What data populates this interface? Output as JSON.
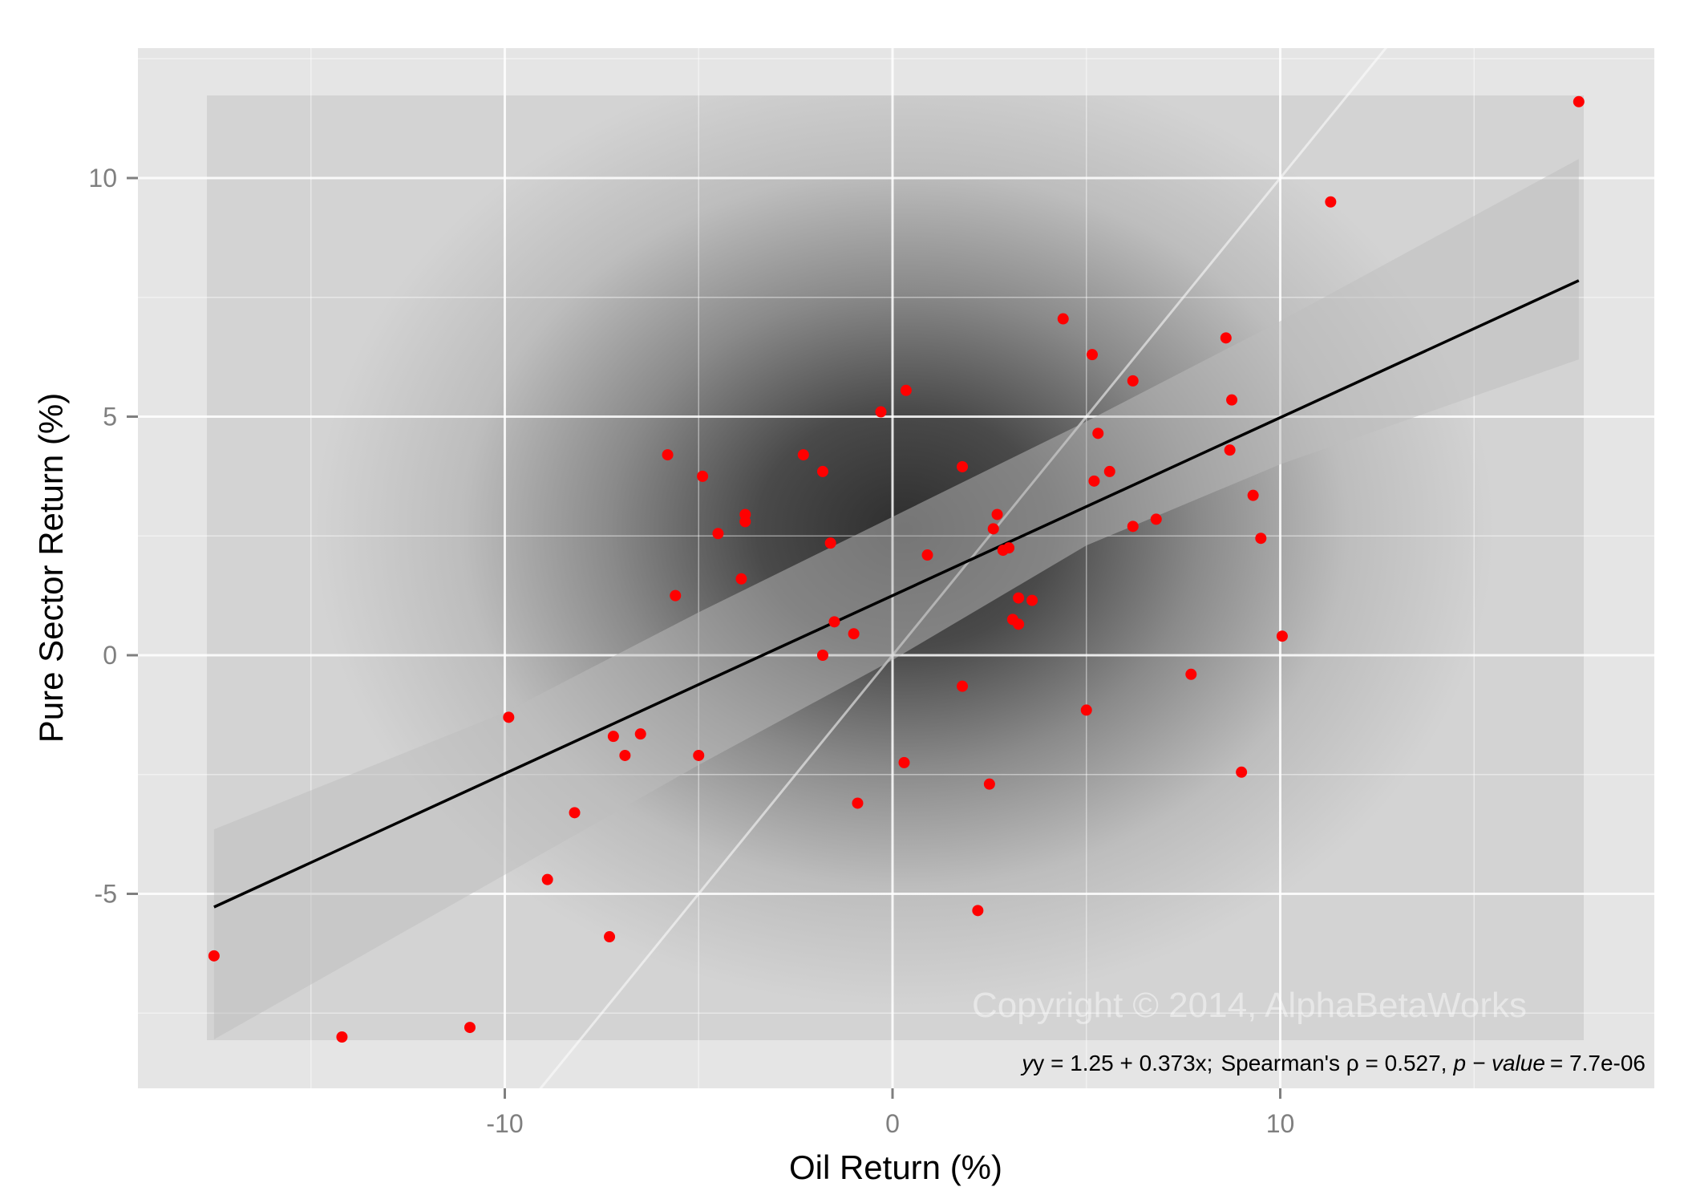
{
  "chart_data": {
    "type": "scatter",
    "title": "",
    "xlabel": "Oil Return (%)",
    "ylabel": "Pure Sector Return (%)",
    "xlim": [
      -18.2,
      19.6
    ],
    "ylim": [
      -9.1,
      12.6
    ],
    "x_ticks": [
      -10,
      0,
      10
    ],
    "y_ticks": [
      -5,
      0,
      5,
      10
    ],
    "grid": true,
    "point_color": "#ff0000",
    "regression": {
      "intercept": 1.25,
      "slope": 0.373,
      "x_range": [
        -17.5,
        17.7
      ],
      "color": "#000000"
    },
    "confidence_band": {
      "x": [
        -17.5,
        -10,
        -5,
        0,
        5,
        10,
        17.7
      ],
      "upper": [
        -3.65,
        -1.2,
        0.9,
        2.9,
        4.9,
        7.0,
        10.4
      ],
      "lower": [
        -8.05,
        -4.6,
        -2.3,
        -0.1,
        2.3,
        4.0,
        6.2
      ]
    },
    "identity_line": {
      "label": "y = x",
      "color": "#ffffff"
    },
    "annotation": "y = 1.25 + 0.373x;  Spearman's ρ = 0.527, p − value = 7.7e-06",
    "watermark": "Copyright © 2014, AlphaBetaWorks",
    "points": [
      {
        "x": -17.5,
        "y": -6.3
      },
      {
        "x": -14.2,
        "y": -8.0
      },
      {
        "x": -10.9,
        "y": -7.8
      },
      {
        "x": -9.9,
        "y": -1.3
      },
      {
        "x": -8.9,
        "y": -4.7
      },
      {
        "x": -8.2,
        "y": -3.3
      },
      {
        "x": -7.3,
        "y": -5.9
      },
      {
        "x": -7.2,
        "y": -1.7
      },
      {
        "x": -6.9,
        "y": -2.1
      },
      {
        "x": -6.5,
        "y": -1.65
      },
      {
        "x": -5.8,
        "y": 4.2
      },
      {
        "x": -5.6,
        "y": 1.25
      },
      {
        "x": -5.0,
        "y": -2.1
      },
      {
        "x": -4.9,
        "y": 3.75
      },
      {
        "x": -4.5,
        "y": 2.55
      },
      {
        "x": -3.9,
        "y": 1.6
      },
      {
        "x": -3.8,
        "y": 2.95
      },
      {
        "x": -3.8,
        "y": 2.8
      },
      {
        "x": -2.3,
        "y": 4.2
      },
      {
        "x": -1.8,
        "y": 3.85
      },
      {
        "x": -1.8,
        "y": 0.0
      },
      {
        "x": -1.6,
        "y": 2.35
      },
      {
        "x": -1.5,
        "y": 0.7
      },
      {
        "x": -1.0,
        "y": 0.45
      },
      {
        "x": -0.9,
        "y": -3.1
      },
      {
        "x": -0.3,
        "y": 5.1
      },
      {
        "x": 0.3,
        "y": -2.25
      },
      {
        "x": 0.35,
        "y": 5.55
      },
      {
        "x": 0.9,
        "y": 2.1
      },
      {
        "x": 1.8,
        "y": 3.95
      },
      {
        "x": 1.8,
        "y": -0.65
      },
      {
        "x": 2.2,
        "y": -5.35
      },
      {
        "x": 2.5,
        "y": -2.7
      },
      {
        "x": 2.6,
        "y": 2.65
      },
      {
        "x": 2.7,
        "y": 2.95
      },
      {
        "x": 2.85,
        "y": 2.2
      },
      {
        "x": 3.0,
        "y": 2.25
      },
      {
        "x": 3.1,
        "y": 0.75
      },
      {
        "x": 3.25,
        "y": 1.2
      },
      {
        "x": 3.25,
        "y": 0.65
      },
      {
        "x": 3.6,
        "y": 1.15
      },
      {
        "x": 4.4,
        "y": 7.05
      },
      {
        "x": 5.0,
        "y": -1.15
      },
      {
        "x": 5.15,
        "y": 6.3
      },
      {
        "x": 5.2,
        "y": 3.65
      },
      {
        "x": 5.3,
        "y": 4.65
      },
      {
        "x": 5.6,
        "y": 3.85
      },
      {
        "x": 6.2,
        "y": 2.7
      },
      {
        "x": 6.2,
        "y": 5.75
      },
      {
        "x": 6.8,
        "y": 2.85
      },
      {
        "x": 7.7,
        "y": -0.4
      },
      {
        "x": 8.6,
        "y": 6.65
      },
      {
        "x": 8.7,
        "y": 4.3
      },
      {
        "x": 8.75,
        "y": 5.35
      },
      {
        "x": 9.0,
        "y": -2.45
      },
      {
        "x": 9.3,
        "y": 3.35
      },
      {
        "x": 9.5,
        "y": 2.45
      },
      {
        "x": 10.05,
        "y": 0.4
      },
      {
        "x": 11.3,
        "y": 9.5
      },
      {
        "x": 17.7,
        "y": 11.6
      }
    ]
  },
  "axes": {
    "x_title": "Oil Return (%)",
    "y_title": "Pure Sector Return (%)",
    "x_tick_labels": [
      "-10",
      "0",
      "10"
    ],
    "y_tick_labels": [
      "-5",
      "0",
      "5",
      "10"
    ]
  },
  "annotation_text": {
    "formula": "y = 1.25 + 0.373x;",
    "spearman": "Spearman's ρ = 0.527,",
    "pvalue_label": "p − value",
    "pvalue": "= 7.7e-06"
  },
  "watermark": "Copyright © 2014, AlphaBetaWorks"
}
